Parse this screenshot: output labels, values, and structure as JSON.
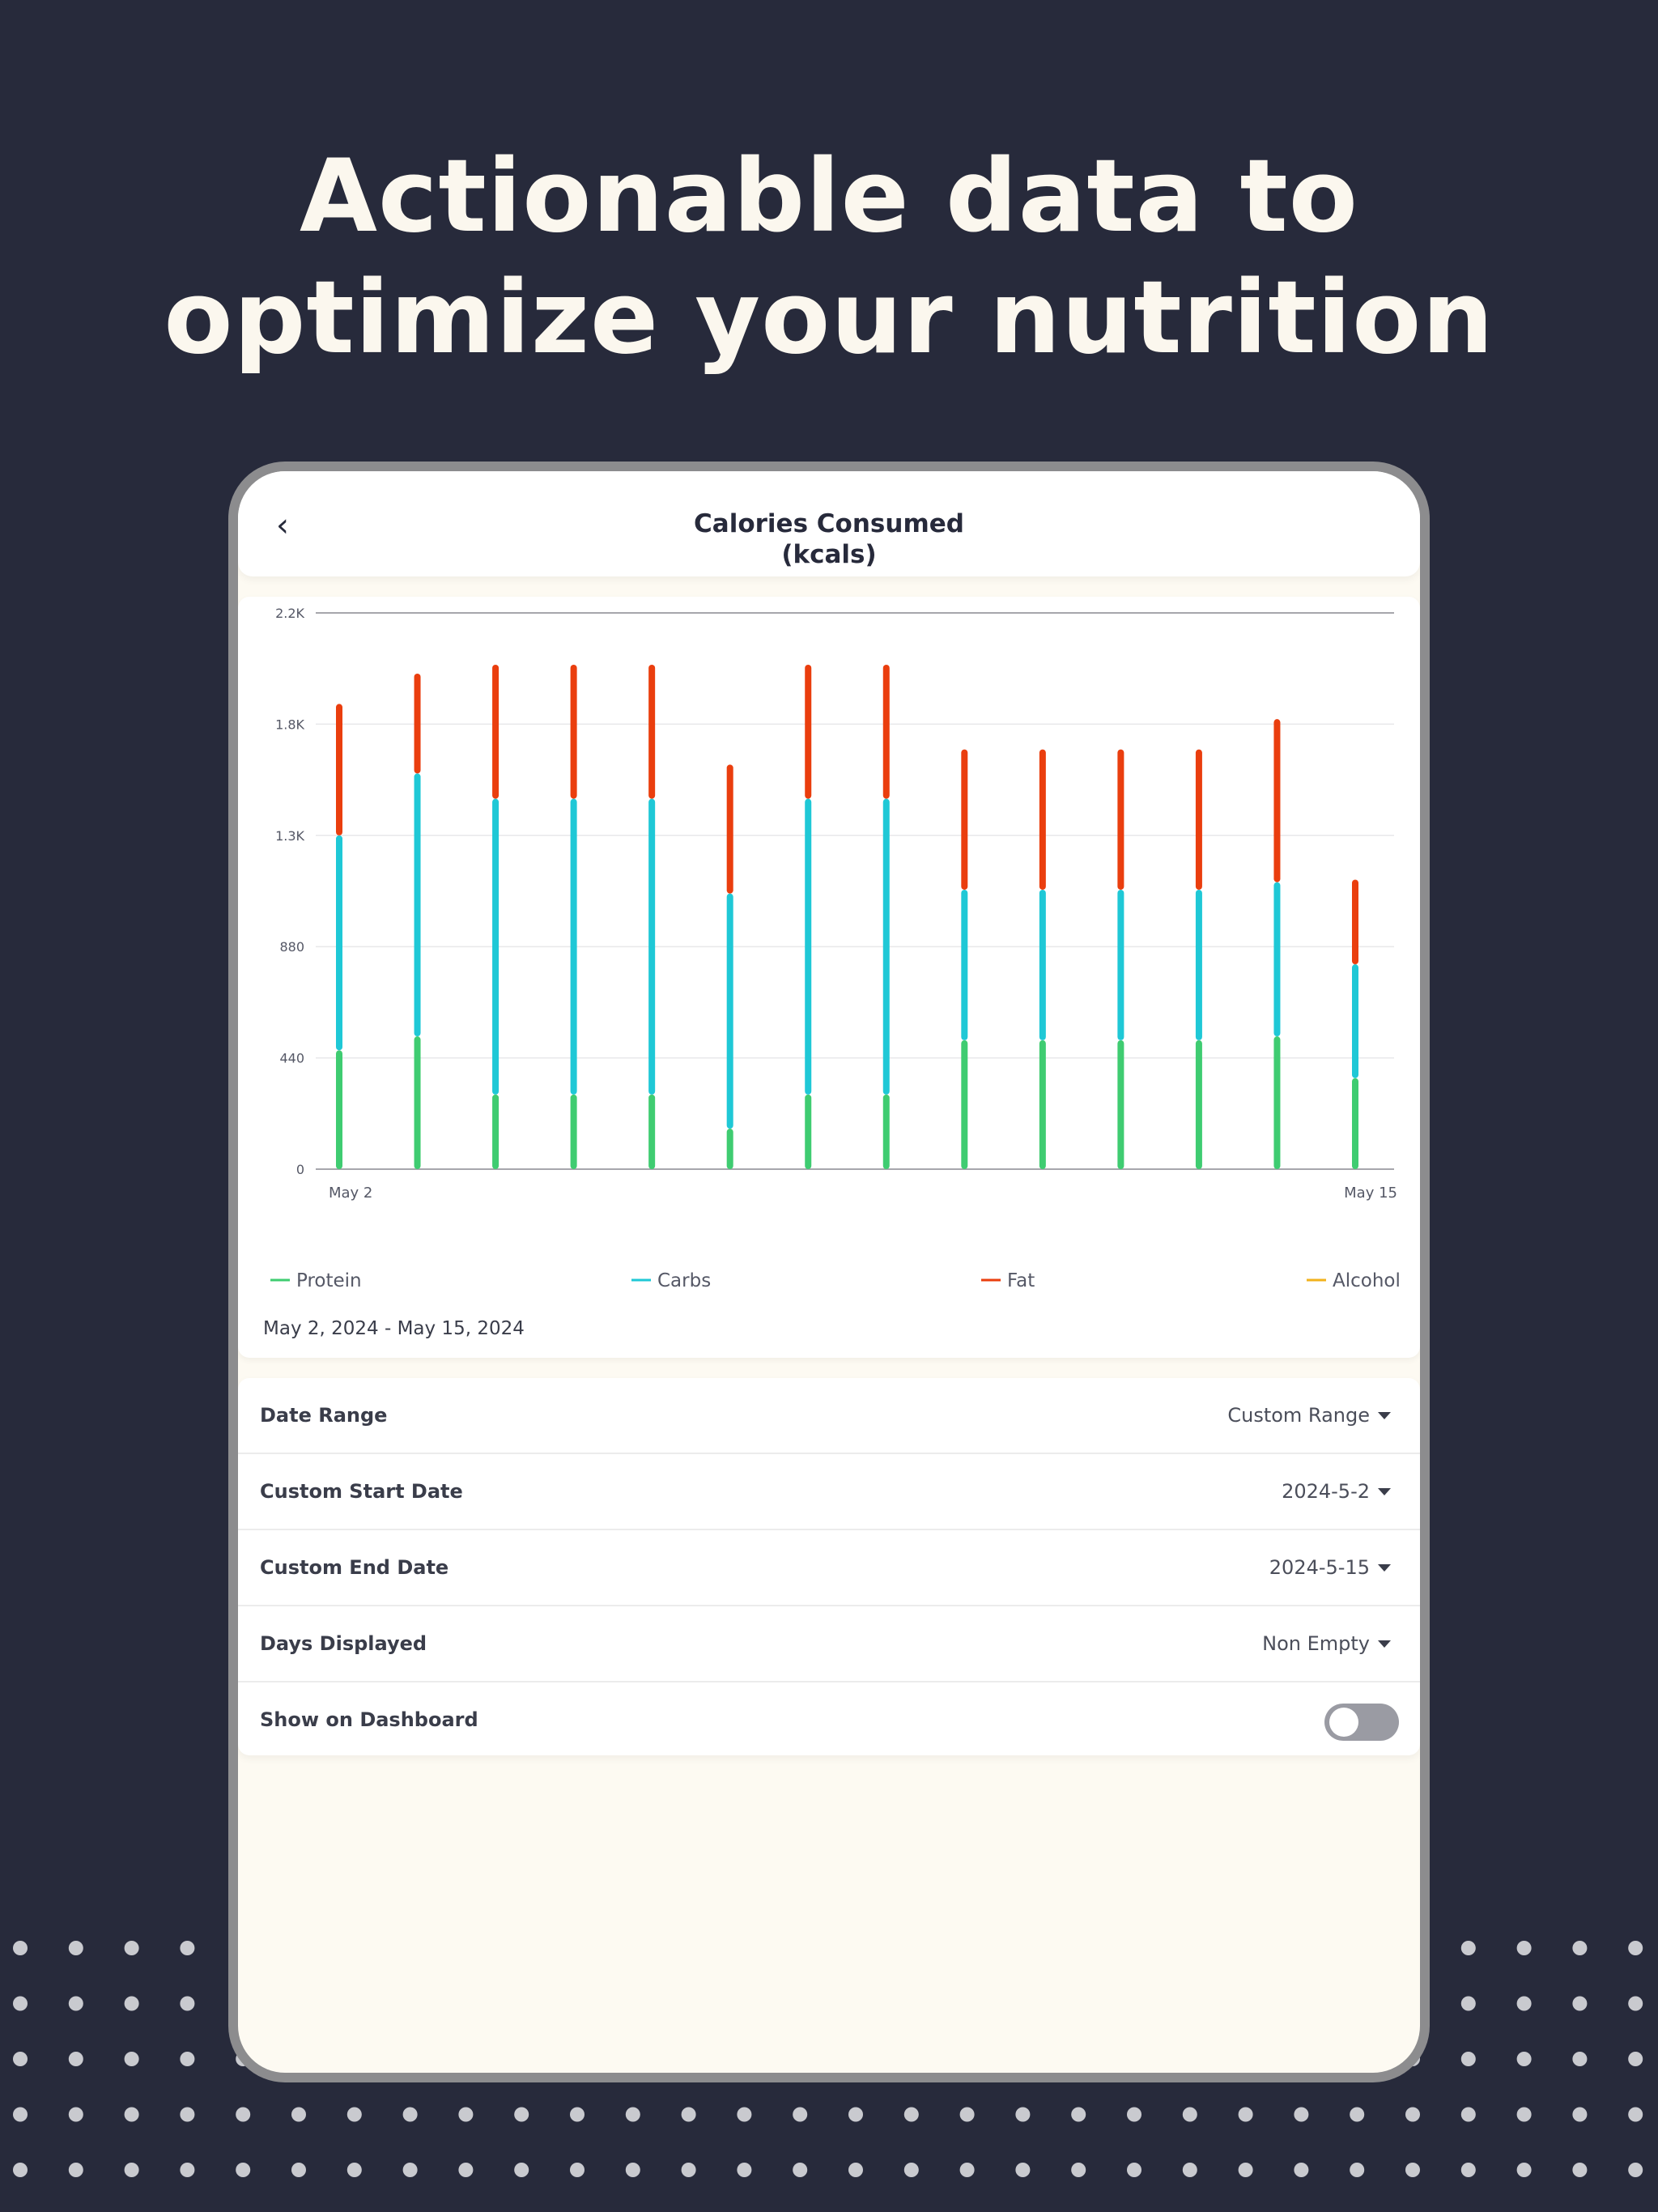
{
  "headline": {
    "line1": "Actionable data to",
    "line2": "optimize your nutrition"
  },
  "header": {
    "back_icon": "chevron-left-icon",
    "back_glyph": "‹",
    "title_line1": "Calories Consumed",
    "title_line2": "(kcals)"
  },
  "date_range_text": "May 2, 2024 - May 15, 2024",
  "settings": {
    "rows": [
      {
        "label": "Date Range",
        "value": "Custom Range"
      },
      {
        "label": "Custom Start Date",
        "value": "2024-5-2"
      },
      {
        "label": "Custom End Date",
        "value": "2024-5-15"
      },
      {
        "label": "Days Displayed",
        "value": "Non Empty"
      },
      {
        "label": "Show on Dashboard",
        "toggle": false
      }
    ]
  },
  "colors": {
    "background": "#272a3b",
    "protein": "#3fcc71",
    "carbs": "#1fc8d6",
    "fat": "#ea3e0e",
    "alcohol": "#f2b21c",
    "toggle_off": "#9a9ba3"
  },
  "chart_data": {
    "type": "bar",
    "stacked": true,
    "x_start_label": "May 2",
    "x_end_label": "May 15",
    "y_ticks": [
      "0",
      "440",
      "880",
      "1.3K",
      "1.8K",
      "2.2K"
    ],
    "y_tick_values": [
      0,
      440,
      880,
      1320,
      1760,
      2200
    ],
    "ylim": [
      0,
      2200
    ],
    "grid": true,
    "legend_position": "bottom",
    "series": [
      {
        "name": "Protein",
        "color": "#3fcc71",
        "values": [
          470,
          525,
          295,
          295,
          295,
          160,
          295,
          295,
          510,
          510,
          510,
          510,
          525,
          360
        ]
      },
      {
        "name": "Carbs",
        "color": "#1fc8d6",
        "values": [
          850,
          1040,
          1170,
          1170,
          1170,
          930,
          1170,
          1170,
          595,
          595,
          595,
          595,
          610,
          450
        ]
      },
      {
        "name": "Fat",
        "color": "#ea3e0e",
        "values": [
          520,
          395,
          530,
          530,
          530,
          510,
          530,
          530,
          555,
          555,
          555,
          555,
          645,
          335
        ]
      },
      {
        "name": "Alcohol",
        "color": "#f2b21c",
        "values": [
          0,
          0,
          0,
          0,
          0,
          0,
          0,
          0,
          0,
          0,
          0,
          0,
          0,
          0
        ]
      }
    ]
  }
}
